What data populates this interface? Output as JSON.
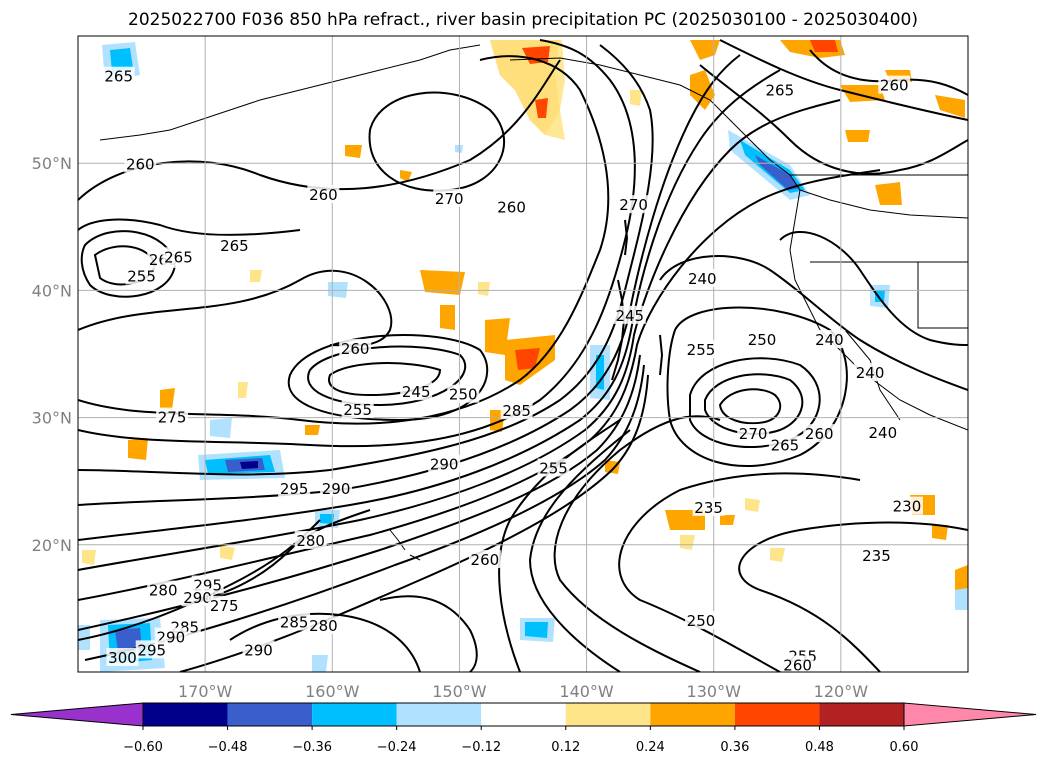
{
  "title": "2025022700 F036 850 hPa refract., river basin precipitation PC (2025030100 - 2025030400)",
  "map": {
    "lon_range": [
      -180,
      -110
    ],
    "lat_range": [
      10,
      60
    ],
    "lat_ticks": [
      {
        "value": 50,
        "label": "50°N"
      },
      {
        "value": 40,
        "label": "40°N"
      },
      {
        "value": 30,
        "label": "30°N"
      },
      {
        "value": 20,
        "label": "20°N"
      }
    ],
    "lon_ticks": [
      {
        "value": -170,
        "label": "170°W"
      },
      {
        "value": -160,
        "label": "160°W"
      },
      {
        "value": -150,
        "label": "150°W"
      },
      {
        "value": -140,
        "label": "140°W"
      },
      {
        "value": -130,
        "label": "130°W"
      },
      {
        "value": -120,
        "label": "120°W"
      }
    ],
    "grid": true,
    "contour_labels": [
      {
        "text": "265",
        "lon": -176.8,
        "lat": 56.8
      },
      {
        "text": "260",
        "lon": -175.1,
        "lat": 49.9
      },
      {
        "text": "260",
        "lon": -160.7,
        "lat": 47.5
      },
      {
        "text": "270",
        "lon": -150.8,
        "lat": 47.2
      },
      {
        "text": "260",
        "lon": -145.9,
        "lat": 46.5
      },
      {
        "text": "270",
        "lon": -136.3,
        "lat": 46.7
      },
      {
        "text": "265",
        "lon": -124.8,
        "lat": 55.7
      },
      {
        "text": "260",
        "lon": -115.8,
        "lat": 56.1
      },
      {
        "text": "265",
        "lon": -167.7,
        "lat": 43.5
      },
      {
        "text": "255",
        "lon": -175.0,
        "lat": 41.1
      },
      {
        "text": "260",
        "lon": -173.3,
        "lat": 42.4
      },
      {
        "text": "265",
        "lon": -172.1,
        "lat": 42.6
      },
      {
        "text": "240",
        "lon": -130.9,
        "lat": 40.9
      },
      {
        "text": "245",
        "lon": -136.6,
        "lat": 38.0
      },
      {
        "text": "255",
        "lon": -131.0,
        "lat": 35.3
      },
      {
        "text": "250",
        "lon": -126.2,
        "lat": 36.1
      },
      {
        "text": "240",
        "lon": -120.9,
        "lat": 36.1
      },
      {
        "text": "240",
        "lon": -117.7,
        "lat": 33.5
      },
      {
        "text": "260",
        "lon": -158.2,
        "lat": 35.4
      },
      {
        "text": "245",
        "lon": -153.4,
        "lat": 32.0
      },
      {
        "text": "250",
        "lon": -149.7,
        "lat": 31.8
      },
      {
        "text": "255",
        "lon": -158.0,
        "lat": 30.6
      },
      {
        "text": "285",
        "lon": -145.5,
        "lat": 30.5
      },
      {
        "text": "275",
        "lon": -172.6,
        "lat": 30.0
      },
      {
        "text": "270",
        "lon": -126.9,
        "lat": 28.7
      },
      {
        "text": "265",
        "lon": -124.4,
        "lat": 27.8
      },
      {
        "text": "260",
        "lon": -121.7,
        "lat": 28.7
      },
      {
        "text": "240",
        "lon": -116.7,
        "lat": 28.8
      },
      {
        "text": "290",
        "lon": -151.2,
        "lat": 26.3
      },
      {
        "text": "295",
        "lon": -163.0,
        "lat": 24.4
      },
      {
        "text": "290",
        "lon": -159.7,
        "lat": 24.4
      },
      {
        "text": "255",
        "lon": -142.6,
        "lat": 26.0
      },
      {
        "text": "235",
        "lon": -130.4,
        "lat": 22.9
      },
      {
        "text": "230",
        "lon": -114.8,
        "lat": 23.0
      },
      {
        "text": "280",
        "lon": -161.7,
        "lat": 20.3
      },
      {
        "text": "260",
        "lon": -148.0,
        "lat": 18.8
      },
      {
        "text": "235",
        "lon": -117.2,
        "lat": 19.1
      },
      {
        "text": "295",
        "lon": -169.8,
        "lat": 16.8
      },
      {
        "text": "290",
        "lon": -170.6,
        "lat": 15.8
      },
      {
        "text": "280",
        "lon": -173.3,
        "lat": 16.4
      },
      {
        "text": "275",
        "lon": -168.5,
        "lat": 15.2
      },
      {
        "text": "285",
        "lon": -171.6,
        "lat": 13.5
      },
      {
        "text": "290",
        "lon": -172.7,
        "lat": 12.7
      },
      {
        "text": "285",
        "lon": -163.0,
        "lat": 13.9
      },
      {
        "text": "290",
        "lon": -165.8,
        "lat": 11.7
      },
      {
        "text": "280",
        "lon": -160.7,
        "lat": 13.6
      },
      {
        "text": "295",
        "lon": -174.2,
        "lat": 11.7
      },
      {
        "text": "300",
        "lon": -176.5,
        "lat": 11.1
      },
      {
        "text": "250",
        "lon": -131.0,
        "lat": 14.0
      },
      {
        "text": "255",
        "lon": -123.0,
        "lat": 11.2
      },
      {
        "text": "260",
        "lon": -123.4,
        "lat": 10.5
      }
    ]
  },
  "colorbar": {
    "boundaries": [
      -0.6,
      -0.48,
      -0.36,
      -0.24,
      -0.12,
      0.12,
      0.24,
      0.36,
      0.48,
      0.6
    ],
    "tick_labels": [
      "−0.60",
      "−0.48",
      "−0.36",
      "−0.24",
      "−0.12",
      "0.12",
      "0.24",
      "0.36",
      "0.48",
      "0.60"
    ],
    "colors": [
      "#9932cc",
      "#00008b",
      "#3a5fcd",
      "#00bfff",
      "#b0e2ff",
      "#ffffff",
      "#ffe58a",
      "#ffa500",
      "#ff4500",
      "#b22222",
      "#ff88aa"
    ],
    "extend": "both"
  }
}
